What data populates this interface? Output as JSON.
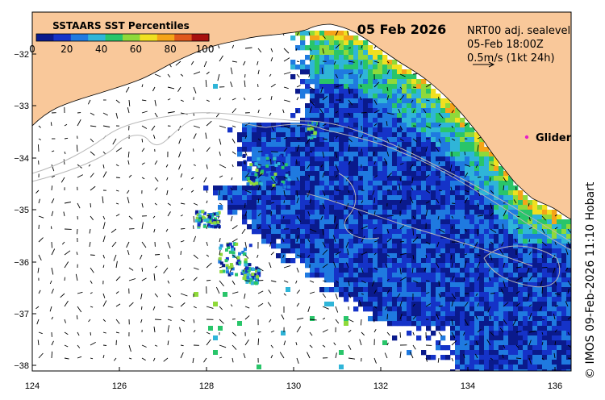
{
  "map": {
    "date": "05 Feb 2026",
    "legend_title": "SSTAARS SST Percentiles",
    "legend_ticks": [
      "0",
      "20",
      "40",
      "60",
      "80",
      "100"
    ],
    "legend_colors": [
      "#0a1a8c",
      "#1533c8",
      "#1f7ae0",
      "#2fb5d8",
      "#29c56a",
      "#8fd93a",
      "#f0e020",
      "#f5a418",
      "#e0581c",
      "#a8100e"
    ],
    "current_info": {
      "line1": "NRT00 adj. sealevel",
      "line2": "05-Feb 18:00Z",
      "line3": "0.5m/s (1kt 24h)"
    },
    "glider_label": "Glider",
    "glider_color": "#e81ec8",
    "land_color": "#f9c89a",
    "credit": "© IMOS 09-Feb-2026 11:10 Hobart",
    "lon_ticks": [
      "124",
      "126",
      "128",
      "130",
      "132",
      "134",
      "136"
    ],
    "lat_ticks": [
      "−32",
      "−33",
      "−34",
      "−35",
      "−36",
      "−37",
      "−38"
    ]
  }
}
